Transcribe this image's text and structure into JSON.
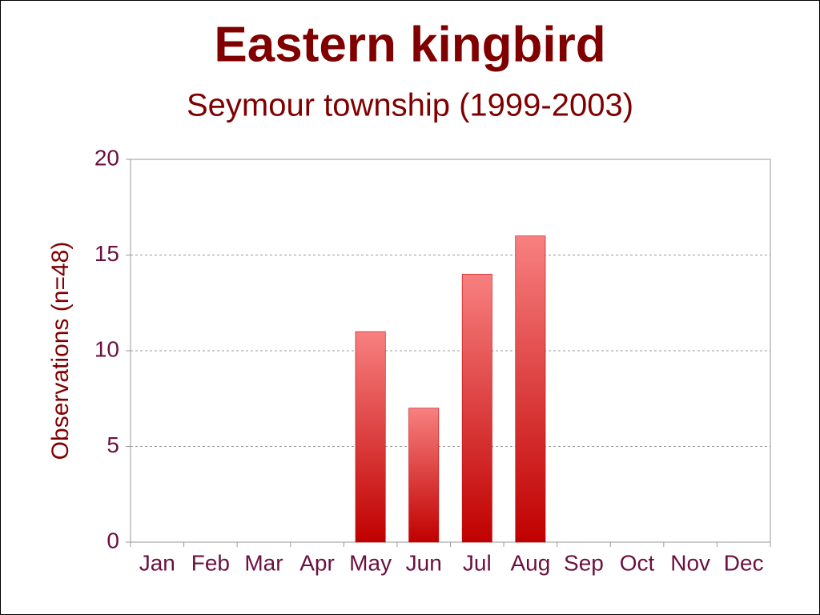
{
  "chart_data": {
    "type": "bar",
    "title": "Eastern kingbird",
    "subtitle": "Seymour township (1999-2003)",
    "y_label": "Observations (n=48)",
    "categories": [
      "Jan",
      "Feb",
      "Mar",
      "Apr",
      "May",
      "Jun",
      "Jul",
      "Aug",
      "Sep",
      "Oct",
      "Nov",
      "Dec"
    ],
    "values": [
      0,
      0,
      0,
      0,
      11,
      7,
      14,
      16,
      0,
      0,
      0,
      0
    ],
    "color": "#c00000",
    "gradient_top": "#f88080",
    "ylim": [
      0,
      20
    ],
    "yticks": [
      0,
      5,
      10,
      15,
      20
    ],
    "grid": true
  }
}
